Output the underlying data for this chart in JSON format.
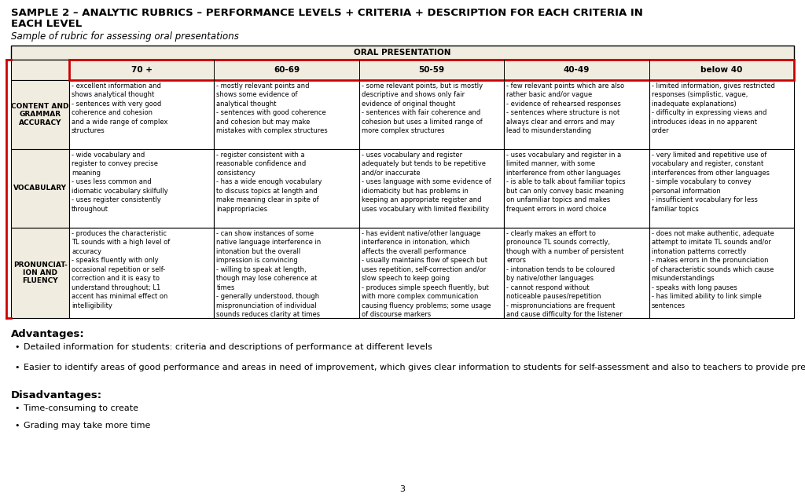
{
  "title_line1": "SAMPLE 2 – ANALYTIC RUBRICS – PERFORMANCE LEVELS + CRITERIA + DESCRIPTION FOR EACH CRITERIA IN",
  "title_line2": "EACH LEVEL",
  "subtitle": "Sample of rubric for assessing oral presentations",
  "table_header": "ORAL PRESENTATION",
  "col_headers": [
    "70 +",
    "60-69",
    "50-59",
    "40-49",
    "below 40"
  ],
  "row_labels": [
    "CONTENT AND\nGRAMMAR\nACCURACY",
    "VOCABULARY",
    "PRONUNCIAT-\nION AND\nFLUENCY"
  ],
  "cells": [
    [
      "- excellent information and\nshows analytical thought\n- sentences with very good\ncoherence and cohesion\nand a wide range of complex\nstructures",
      "- mostly relevant points and\nshows some evidence of\nanalytical thought\n- sentences with good coherence\nand cohesion but may make\nmistakes with complex structures",
      "- some relevant points, but is mostly\ndescriptive and shows only fair\nevidence of original thought\n- sentences with fair coherence and\ncohesion but uses a limited range of\nmore complex structures",
      "- few relevant points which are also\nrather basic and/or vague\n- evidence of rehearsed responses\n- sentences where structure is not\nalways clear and errors and may\nlead to misunderstanding",
      "- limited information, gives restricted\nresponses (simplistic, vague,\ninadequate explanations)\n- difficulty in expressing views and\nintroduces ideas in no apparent\norder"
    ],
    [
      "- wide vocabulary and\nregister to convey precise\nmeaning\n- uses less common and\nidiomatic vocabulary skilfully\n- uses register consistently\nthroughout",
      "- register consistent with a\nreasonable confidence and\nconsistency\n- has a wide enough vocabulary\nto discuss topics at length and\nmake meaning clear in spite of\ninappropriacies",
      "- uses vocabulary and register\nadequately but tends to be repetitive\nand/or inaccurate\n- uses language with some evidence of\nidiomaticity but has problems in\nkeeping an appropriate register and\nuses vocabulary with limited flexibility",
      "- uses vocabulary and register in a\nlimited manner, with some\ninterference from other languages\n- is able to talk about familiar topics\nbut can only convey basic meaning\non unfamiliar topics and makes\nfrequent errors in word choice",
      "- very limited and repetitive use of\nvocabulary and register, constant\ninterferences from other languages\n- simple vocabulary to convey\npersonal information\n- insufficient vocabulary for less\nfamiliar topics"
    ],
    [
      "- produces the characteristic\nTL sounds with a high level of\naccuracy\n- speaks fluently with only\noccasional repetition or self-\ncorrection and it is easy to\nunderstand throughout; L1\naccent has minimal effect on\nintelligibility",
      "- can show instances of some\nnative language interference in\nintonation but the overall\nimpression is convincing\n- willing to speak at length,\nthough may lose coherence at\ntimes\n- generally understood, though\nmispronunciation of individual\nsounds reduces clarity at times",
      "- has evident native/other language\ninterference in intonation, which\naffects the overall performance\n- usually maintains flow of speech but\nuses repetition, self-correction and/or\nslow speech to keep going\n- produces simple speech fluently, but\nwith more complex communication\ncausing fluency problems; some usage\nof discourse markers",
      "- clearly makes an effort to\npronounce TL sounds correctly,\nthough with a number of persistent\nerrors\n- intonation tends to be coloured\nby native/other languages\n- cannot respond without\nnoticeable pauses/repetition\n- mispronunciations are frequent\nand cause difficulty for the listener",
      "- does not make authentic, adequate\nattempt to imitate TL sounds and/or\nintonation patterns correctly\n- makes errors in the pronunciation\nof characteristic sounds which cause\nmisunderstandings\n- speaks with long pauses\n- has limited ability to link simple\nsentences"
    ]
  ],
  "advantages_title": "Advantages:",
  "advantages": [
    "Detailed information for students: criteria and descriptions of performance at different levels",
    "Easier to identify areas of good performance and areas in need of improvement, which gives clear information to students for self-assessment and also to teachers to provide precise feedback"
  ],
  "disadvantages_title": "Disadvantages:",
  "disadvantages": [
    "Time-consuming to create",
    "Grading may take more time"
  ],
  "bg_color": "#ffffff",
  "table_bg": "#f0ece0",
  "border_color": "#000000",
  "red_border_color": "#cc0000",
  "title_fontsize": 9.5,
  "subtitle_fontsize": 8.5,
  "cell_fontsize": 6.0,
  "header_fontsize": 7.0,
  "label_fontsize": 6.5,
  "adv_title_fontsize": 9.5,
  "adv_fontsize": 8.0,
  "page_number": "3"
}
